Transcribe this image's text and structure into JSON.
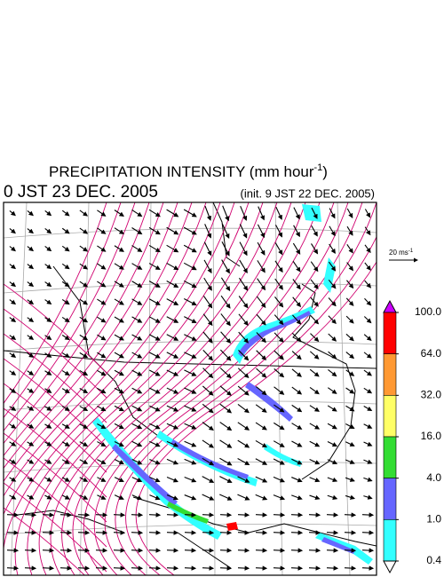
{
  "title": {
    "text": "PRECIPITATION INTENSITY (mm hour",
    "superscript": "-1",
    "closing": ")"
  },
  "valid_time": "0 JST 23 DEC. 2005",
  "init_time": "(init. 9 JST 22 DEC. 2005)",
  "wind_scale": {
    "text": "20 ms",
    "superscript": "-1"
  },
  "colorbar": {
    "levels": [
      {
        "value": 100,
        "label": "100.0"
      },
      {
        "value": 64,
        "label": "64.0"
      },
      {
        "value": 32,
        "label": "32.0"
      },
      {
        "value": 16,
        "label": "16.0"
      },
      {
        "value": 4,
        "label": "4.0"
      },
      {
        "value": 1,
        "label": "1.0"
      },
      {
        "value": 0.4,
        "label": "0.4"
      }
    ],
    "colors": [
      "#cc00ff",
      "#ff0000",
      "#ff9933",
      "#ffff66",
      "#33dd33",
      "#6666ff",
      "#33ffff",
      "#ffffff"
    ]
  }
}
